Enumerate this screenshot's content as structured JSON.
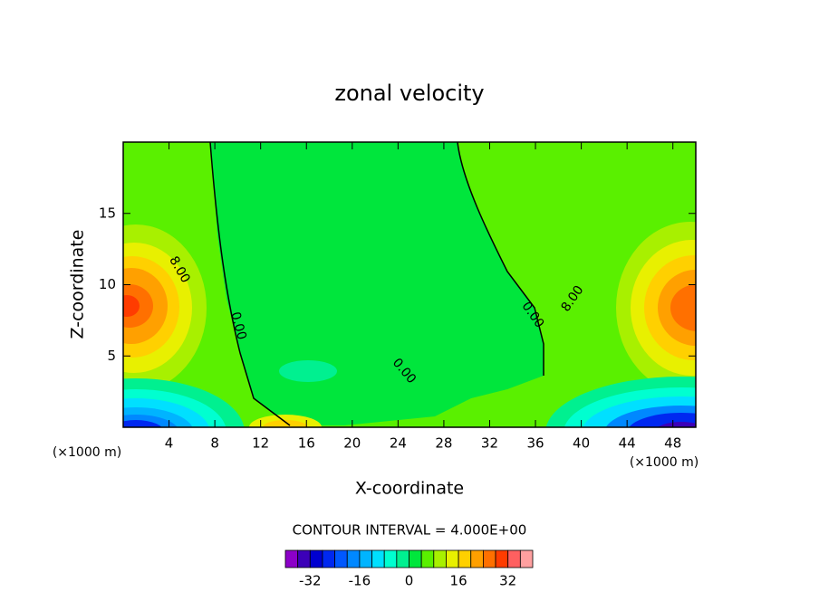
{
  "chart_data": {
    "type": "contour",
    "title": "zonal velocity",
    "x_label": "X-coordinate",
    "y_label": "Z-coordinate",
    "x_unit": "(×1000 m)",
    "x_unit_right": "(×1000 m)",
    "xlim": [
      0,
      50
    ],
    "ylim": [
      0,
      20
    ],
    "xticks": [
      4,
      8,
      12,
      16,
      20,
      24,
      28,
      32,
      36,
      40,
      44,
      48
    ],
    "yticks": [
      5,
      10,
      15
    ],
    "contour_labels": [
      "8.00",
      "0.00",
      "0.00",
      "0.00",
      "8.00"
    ],
    "contour_interval_label": "CONTOUR INTERVAL = 4.000E+00",
    "colorbar": {
      "levels": [
        -40,
        -36,
        -32,
        -28,
        -24,
        -20,
        -16,
        -12,
        -8,
        -4,
        0,
        4,
        8,
        12,
        16,
        20,
        24,
        28,
        32,
        36,
        40
      ],
      "colors": [
        "#8c00c8",
        "#3c00b8",
        "#0000d0",
        "#0028f0",
        "#0058ff",
        "#0088ff",
        "#00b4ff",
        "#00e0ff",
        "#00ffd0",
        "#00f090",
        "#00e63c",
        "#5af000",
        "#a8f000",
        "#e8f000",
        "#ffd000",
        "#ffa000",
        "#ff7000",
        "#ff3c00",
        "#ff6060",
        "#ffa0a0"
      ],
      "ticks": [
        -32,
        -16,
        0,
        16,
        32
      ]
    }
  }
}
